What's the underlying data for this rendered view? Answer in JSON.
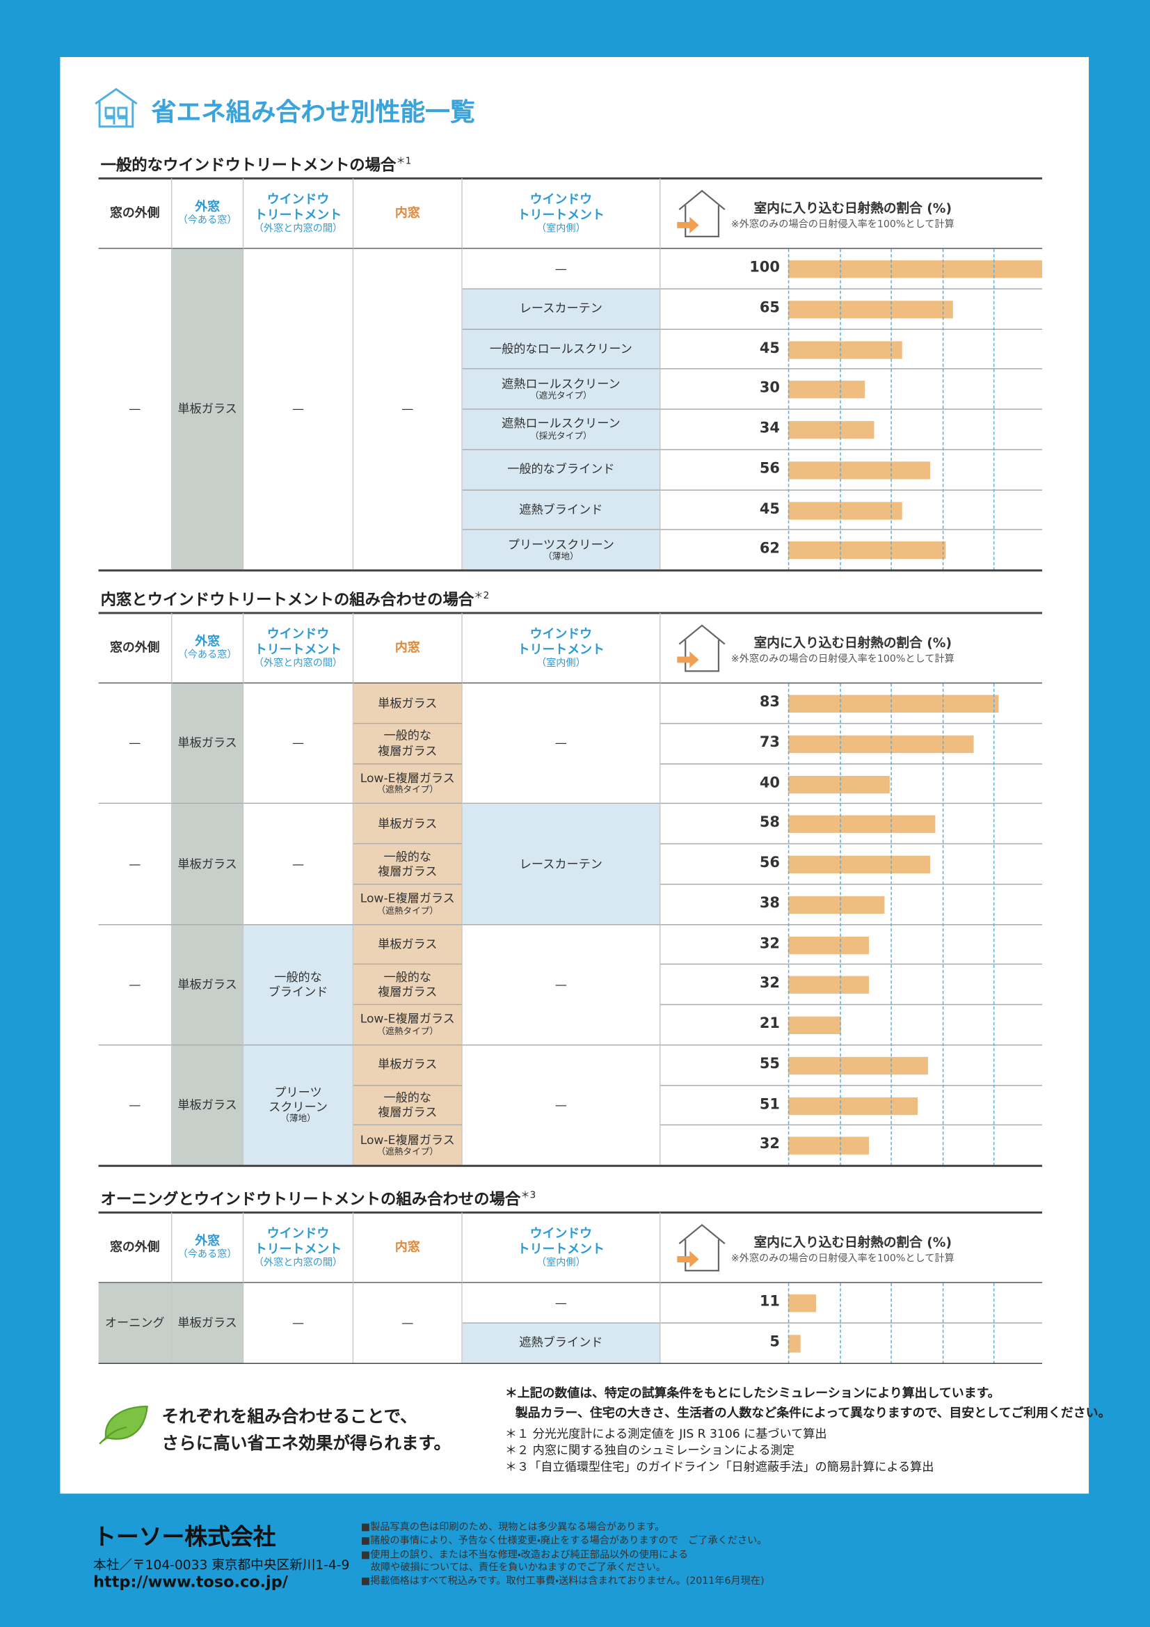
{
  "title": "省エネ組み合わせ別性能一覧",
  "table_header": {
    "outside": "窓の外側",
    "outer": "外窓",
    "outer_note": "（今ある窓）",
    "between": "ウインドウ\nトリートメント",
    "between_note": "（外窓と内窓の間）",
    "inner": "内窓",
    "treatment": "ウインドウ\nトリートメント",
    "treatment_note": "（室内側）",
    "chart": "室内に入り込む日射熱の割合 (%)",
    "chart_note": "※外窓のみの場合の日射侵入率を100%として計算"
  },
  "sections": [
    {
      "title": "一般的なウインドウトリートメントの場合",
      "mark": "＊1",
      "groups": [
        {
          "outside": "—",
          "outer": "単板ガラス",
          "between": "—",
          "inner": "—",
          "rows": [
            {
              "treatment": "—",
              "value": 100
            },
            {
              "treatment": "レースカーテン",
              "value": 65
            },
            {
              "treatment": "一般的なロールスクリーン",
              "value": 45
            },
            {
              "treatment": "遮熱ロールスクリーン",
              "note": "（遮光タイプ）",
              "value": 30
            },
            {
              "treatment": "遮熱ロールスクリーン",
              "note": "（採光タイプ）",
              "value": 34
            },
            {
              "treatment": "一般的なブラインド",
              "value": 56
            },
            {
              "treatment": "遮熱ブラインド",
              "value": 45
            },
            {
              "treatment": "プリーツスクリーン",
              "note": "（薄地）",
              "value": 62
            }
          ]
        }
      ]
    },
    {
      "title": "内窓とウインドウトリートメントの組み合わせの場合",
      "mark": "＊2",
      "groups": [
        {
          "outside": "—",
          "outer": "単板ガラス",
          "between": "—",
          "treatment": "—",
          "rows": [
            {
              "inner": "単板ガラス",
              "value": 83
            },
            {
              "inner": "一般的な\n複層ガラス",
              "value": 73
            },
            {
              "inner": "Low-E複層ガラス",
              "note": "（遮熱タイプ）",
              "value": 40
            }
          ]
        },
        {
          "outside": "—",
          "outer": "単板ガラス",
          "between": "—",
          "treatment": "レースカーテン",
          "rows": [
            {
              "inner": "単板ガラス",
              "value": 58
            },
            {
              "inner": "一般的な\n複層ガラス",
              "value": 56
            },
            {
              "inner": "Low-E複層ガラス",
              "note": "（遮熱タイプ）",
              "value": 38
            }
          ]
        },
        {
          "outside": "—",
          "outer": "単板ガラス",
          "between": "一般的な\nブラインド",
          "treatment": "—",
          "rows": [
            {
              "inner": "単板ガラス",
              "value": 32
            },
            {
              "inner": "一般的な\n複層ガラス",
              "value": 32
            },
            {
              "inner": "Low-E複層ガラス",
              "note": "（遮熱タイプ）",
              "value": 21
            }
          ]
        },
        {
          "outside": "—",
          "outer": "単板ガラス",
          "between": "プリーツ\nスクリーン",
          "between_note": "（薄地）",
          "treatment": "—",
          "rows": [
            {
              "inner": "単板ガラス",
              "value": 55
            },
            {
              "inner": "一般的な\n複層ガラス",
              "value": 51
            },
            {
              "inner": "Low-E複層ガラス",
              "note": "（遮熱タイプ）",
              "value": 32
            }
          ]
        }
      ]
    },
    {
      "title": "オーニングとウインドウトリートメントの組み合わせの場合",
      "mark": "＊3",
      "groups": [
        {
          "outside": "オーニング",
          "outer": "単板ガラス",
          "between": "—",
          "inner": "—",
          "rows": [
            {
              "treatment": "—",
              "value": 11
            },
            {
              "treatment": "遮熱ブラインド",
              "value": 5
            }
          ]
        }
      ]
    }
  ],
  "notes": [
    "＊上記の数値は、特定の試算条件をもとにしたシミュレーションにより算出しています。",
    "製品カラー、住宅の大きさ、生活者の人数など条件によって異なりますので、目安としてご利用ください。",
    "＊１ 分光光度計による測定値を JIS R 3106 に基づいて算出",
    "＊２ 内窓に関する独自のシュミレーションによる測定",
    "＊３「自立循環型住宅」のガイドライン「日射遮蔽手法」の簡易計算による算出"
  ],
  "message": [
    "それぞれを組み合わせることで、",
    "さらに高い省エネ効果が得られます。"
  ],
  "footer": {
    "company": "トーソー株式会社",
    "address": "本社／〒104-0033 東京都中央区新川1-4-9",
    "url": "http://www.toso.co.jp/",
    "notes": [
      "■製品写真の色は印刷のため、現物とは多少異なる場合があります。",
      "■諸般の事情により、予告なく仕様変更・廃止をする場合がありますので　ご了承ください。",
      "■使用上の誤り、または不当な修理・改造および純正部品以外の使用による\n　故障や破損については、責任を負いかねますのでご了承ください。",
      "■掲載価格はすべて税込みです。取付工事費・送料は含まれておりません。(2011年6月現在)"
    ]
  }
}
